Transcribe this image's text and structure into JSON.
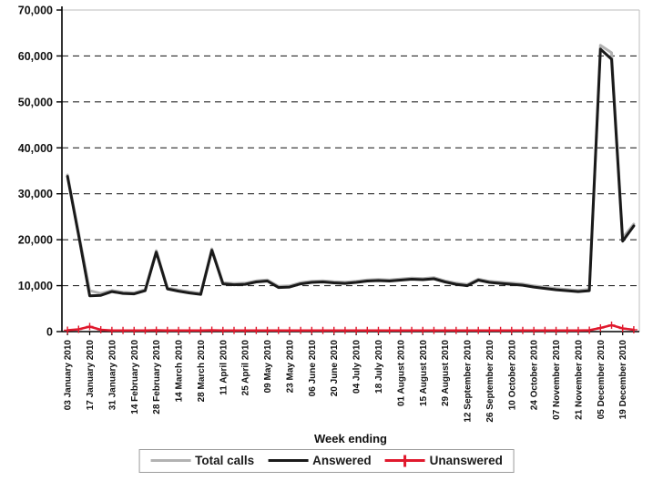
{
  "chart_data": {
    "type": "line",
    "title": "",
    "xlabel": "Week ending",
    "ylabel": "",
    "ylim": [
      0,
      70000
    ],
    "y_step": 10000,
    "y_tick_labels": [
      "0",
      "10,000",
      "20,000",
      "30,000",
      "40,000",
      "50,000",
      "60,000",
      "70,000"
    ],
    "grid": "horizontal-dashed",
    "legend_position": "bottom",
    "x_tick_label_rotation": -90,
    "x_labeled_every": 2,
    "x_tick_labels": [
      "03 January 2010",
      "17 January 2010",
      "31 January 2010",
      "14 February 2010",
      "28 February 2010",
      "14 March 2010",
      "28 March 2010",
      "11 April 2010",
      "25 April 2010",
      "09 May 2010",
      "23 May 2010",
      "06 June 2010",
      "20 June 2010",
      "04 July 2010",
      "18 July 2010",
      "01 August 2010",
      "15 August 2010",
      "29 August 2010",
      "12 September 2010",
      "26 September 2010",
      "10 October 2010",
      "24 October 2010",
      "07 November 2010",
      "21 November 2010",
      "05 December 2010",
      "19 December 2010"
    ],
    "categories": [
      "03 January 2010",
      "10 January 2010",
      "17 January 2010",
      "24 January 2010",
      "31 January 2010",
      "07 February 2010",
      "14 February 2010",
      "21 February 2010",
      "28 February 2010",
      "07 March 2010",
      "14 March 2010",
      "21 March 2010",
      "28 March 2010",
      "04 April 2010",
      "11 April 2010",
      "18 April 2010",
      "25 April 2010",
      "02 May 2010",
      "09 May 2010",
      "16 May 2010",
      "23 May 2010",
      "30 May 2010",
      "06 June 2010",
      "13 June 2010",
      "20 June 2010",
      "27 June 2010",
      "04 July 2010",
      "11 July 2010",
      "18 July 2010",
      "25 July 2010",
      "01 August 2010",
      "08 August 2010",
      "15 August 2010",
      "22 August 2010",
      "29 August 2010",
      "05 September 2010",
      "12 September 2010",
      "19 September 2010",
      "26 September 2010",
      "03 October 2010",
      "10 October 2010",
      "17 October 2010",
      "24 October 2010",
      "31 October 2010",
      "07 November 2010",
      "14 November 2010",
      "21 November 2010",
      "28 November 2010",
      "05 December 2010",
      "12 December 2010",
      "19 December 2010",
      "26 December 2010"
    ],
    "series": [
      {
        "name": "Total calls",
        "color": "#b2b2b2",
        "width": 3,
        "marker": "none",
        "values": [
          34100,
          21500,
          8900,
          8300,
          8950,
          8550,
          8450,
          9150,
          17600,
          9550,
          9050,
          8650,
          8350,
          18000,
          10650,
          10450,
          10550,
          11050,
          11250,
          9850,
          9950,
          10650,
          10950,
          11050,
          10850,
          10750,
          10950,
          11250,
          11350,
          11250,
          11450,
          11650,
          11550,
          11750,
          11050,
          10550,
          10250,
          11450,
          10950,
          10750,
          10550,
          10350,
          9950,
          9650,
          9350,
          9150,
          8950,
          9200,
          62300,
          60700,
          20400,
          23400
        ]
      },
      {
        "name": "Answered",
        "color": "#1a1a1a",
        "width": 3,
        "marker": "none",
        "values": [
          33800,
          21000,
          7800,
          7900,
          8700,
          8300,
          8200,
          8900,
          17300,
          9300,
          8800,
          8400,
          8100,
          17700,
          10400,
          10200,
          10300,
          10800,
          11000,
          9600,
          9700,
          10400,
          10700,
          10800,
          10600,
          10500,
          10700,
          11000,
          11100,
          11000,
          11200,
          11400,
          11300,
          11500,
          10800,
          10300,
          10000,
          11200,
          10700,
          10500,
          10300,
          10100,
          9700,
          9400,
          9100,
          8900,
          8700,
          8900,
          61500,
          59300,
          19700,
          23000
        ]
      },
      {
        "name": "Unanswered",
        "color": "#e0192d",
        "width": 2.5,
        "marker": "plus",
        "values": [
          300,
          500,
          1100,
          400,
          250,
          250,
          250,
          250,
          300,
          250,
          250,
          250,
          250,
          300,
          250,
          250,
          250,
          250,
          250,
          250,
          250,
          250,
          250,
          250,
          250,
          250,
          250,
          250,
          250,
          250,
          250,
          250,
          250,
          250,
          250,
          250,
          250,
          250,
          250,
          250,
          250,
          250,
          250,
          250,
          250,
          250,
          250,
          300,
          800,
          1400,
          700,
          400
        ]
      }
    ],
    "style_colors": {
      "grid": "#2b2b2b",
      "axis": "#000000",
      "plot_border": "#c9c9c9",
      "text": "#111111"
    }
  }
}
